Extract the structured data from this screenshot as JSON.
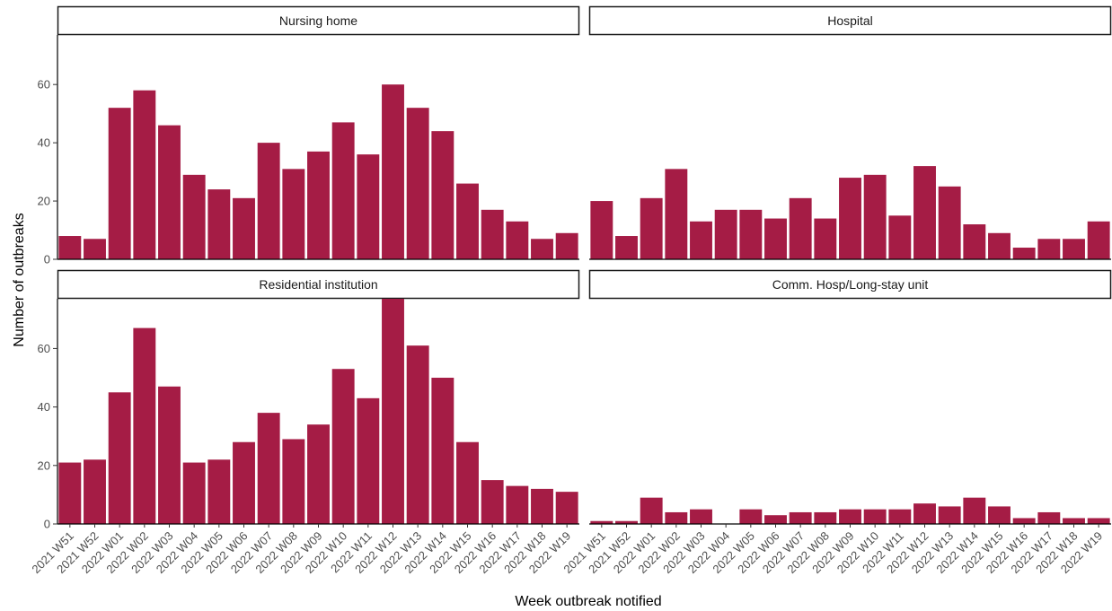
{
  "chart_data": {
    "type": "bar",
    "xlabel": "Week outbreak notified",
    "ylabel": "Number of outbreaks",
    "ylim": [
      0,
      77
    ],
    "yticks": [
      0,
      20,
      40,
      60
    ],
    "grid": false,
    "bar_color": "#a51c45",
    "categories": [
      "2021 W51",
      "2021 W52",
      "2022 W01",
      "2022 W02",
      "2022 W03",
      "2022 W04",
      "2022 W05",
      "2022 W06",
      "2022 W07",
      "2022 W08",
      "2022 W09",
      "2022 W10",
      "2022 W11",
      "2022 W12",
      "2022 W13",
      "2022 W14",
      "2022 W15",
      "2022 W16",
      "2022 W17",
      "2022 W18",
      "2022 W19"
    ],
    "panels": [
      {
        "name": "Nursing home",
        "values": [
          8,
          7,
          52,
          58,
          46,
          29,
          24,
          21,
          40,
          31,
          37,
          47,
          36,
          60,
          52,
          44,
          26,
          17,
          13,
          7,
          9
        ]
      },
      {
        "name": "Hospital",
        "values": [
          20,
          8,
          21,
          31,
          13,
          17,
          17,
          14,
          21,
          14,
          28,
          29,
          15,
          32,
          25,
          12,
          9,
          4,
          7,
          7,
          13
        ]
      },
      {
        "name": "Residential institution",
        "values": [
          21,
          22,
          45,
          67,
          47,
          21,
          22,
          28,
          38,
          29,
          34,
          53,
          43,
          77,
          61,
          50,
          28,
          15,
          13,
          12,
          11
        ]
      },
      {
        "name": "Comm. Hosp/Long-stay unit",
        "values": [
          1,
          1,
          9,
          4,
          5,
          0,
          5,
          3,
          4,
          4,
          5,
          5,
          5,
          7,
          6,
          9,
          6,
          2,
          4,
          2,
          2
        ]
      }
    ]
  }
}
